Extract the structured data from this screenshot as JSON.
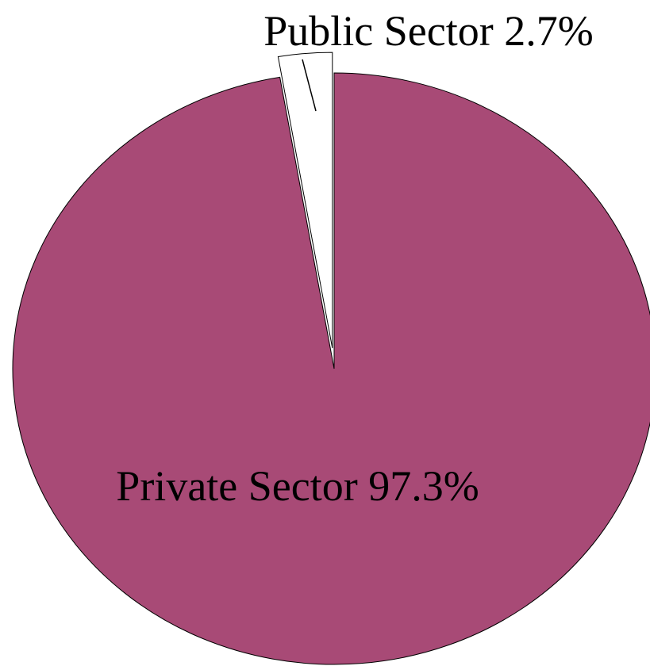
{
  "chart_data": {
    "type": "pie",
    "title": "",
    "slices": [
      {
        "label": "Private Sector",
        "value": 97.3,
        "display": "Private Sector  97.3%",
        "color": "#a84a76",
        "exploded": false
      },
      {
        "label": "Public Sector",
        "value": 2.7,
        "display": "Public Sector 2.7%",
        "color": "#ffffff",
        "exploded": true
      }
    ],
    "start_angle_deg": 0,
    "direction": "clockwise",
    "legend": "none"
  }
}
